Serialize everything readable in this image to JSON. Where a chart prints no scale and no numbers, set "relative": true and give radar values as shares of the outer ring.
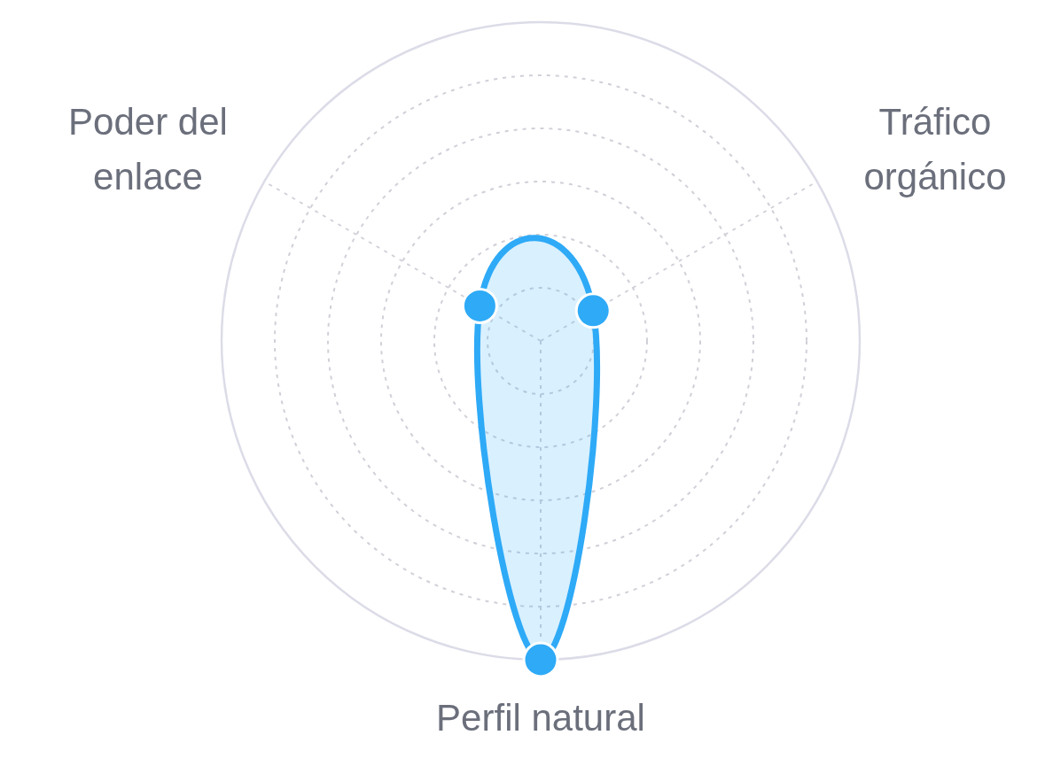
{
  "chart_data": {
    "type": "radar",
    "relative": true,
    "grid": true,
    "marker": "circle",
    "categories": [
      "Tráfico orgánico",
      "Perfil natural",
      "Poder del enlace"
    ],
    "series": [
      {
        "color": "#2eaaf7",
        "values": [
          0.19,
          1,
          0.22
        ]
      }
    ]
  }
}
